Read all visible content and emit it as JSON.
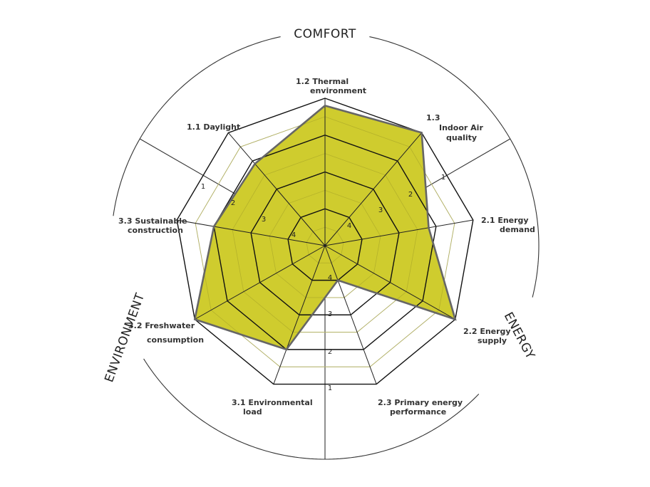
{
  "chart_data": {
    "type": "radar",
    "title": "",
    "scale": {
      "outer": 1,
      "center": 5,
      "rings": [
        1,
        2,
        3,
        4
      ],
      "half_rings": [
        1.5,
        2.5,
        3.5,
        4.5
      ]
    },
    "axes": [
      {
        "id": "1.2",
        "label_lines": [
          "1.2 Thermal",
          "environment"
        ],
        "angle": 90,
        "value": 1.2
      },
      {
        "id": "1.3",
        "label_lines": [
          "1.3",
          "Indoor Air",
          "quality"
        ],
        "angle": 50,
        "value": 1.0
      },
      {
        "id": "2.1",
        "label_lines": [
          "2.1 Energy",
          "demand"
        ],
        "angle": 10,
        "value": 2.2
      },
      {
        "id": "2.2",
        "label_lines": [
          "2.2 Energy",
          "supply"
        ],
        "angle": -30,
        "value": 1.0
      },
      {
        "id": "2.3",
        "label_lines": [
          "2.3 Primary energy",
          "performance"
        ],
        "angle": -70,
        "value": 4.0
      },
      {
        "id": "3.1",
        "label_lines": [
          "3.1 Environmental",
          "load"
        ],
        "angle": -110,
        "value": 2.0
      },
      {
        "id": "3.2",
        "label_lines": [
          "3.2 Freshwater",
          "consumption"
        ],
        "angle": -150,
        "value": 1.0
      },
      {
        "id": "3.3",
        "label_lines": [
          "3.3 Sustainable",
          "construction"
        ],
        "angle": 170,
        "value": 2.0
      },
      {
        "id": "1.1",
        "label_lines": [
          "1.1 Daylight"
        ],
        "angle": 130,
        "value": 2.1
      }
    ],
    "groups": [
      {
        "name": "COMFORT",
        "axes": [
          "1.1",
          "1.2",
          "1.3"
        ]
      },
      {
        "name": "ENERGY",
        "axes": [
          "2.1",
          "2.2",
          "2.3"
        ]
      },
      {
        "name": "ENVIRONMENT",
        "axes": [
          "3.1",
          "3.2",
          "3.3"
        ]
      }
    ],
    "dividers": [
      30,
      150,
      270
    ],
    "tick_labels": [
      "1",
      "2",
      "3",
      "4"
    ],
    "colors": {
      "fill": "#cfcc2e",
      "outline": "#666666",
      "grid": "#111111",
      "half_grid": "#c8c8c8"
    }
  }
}
